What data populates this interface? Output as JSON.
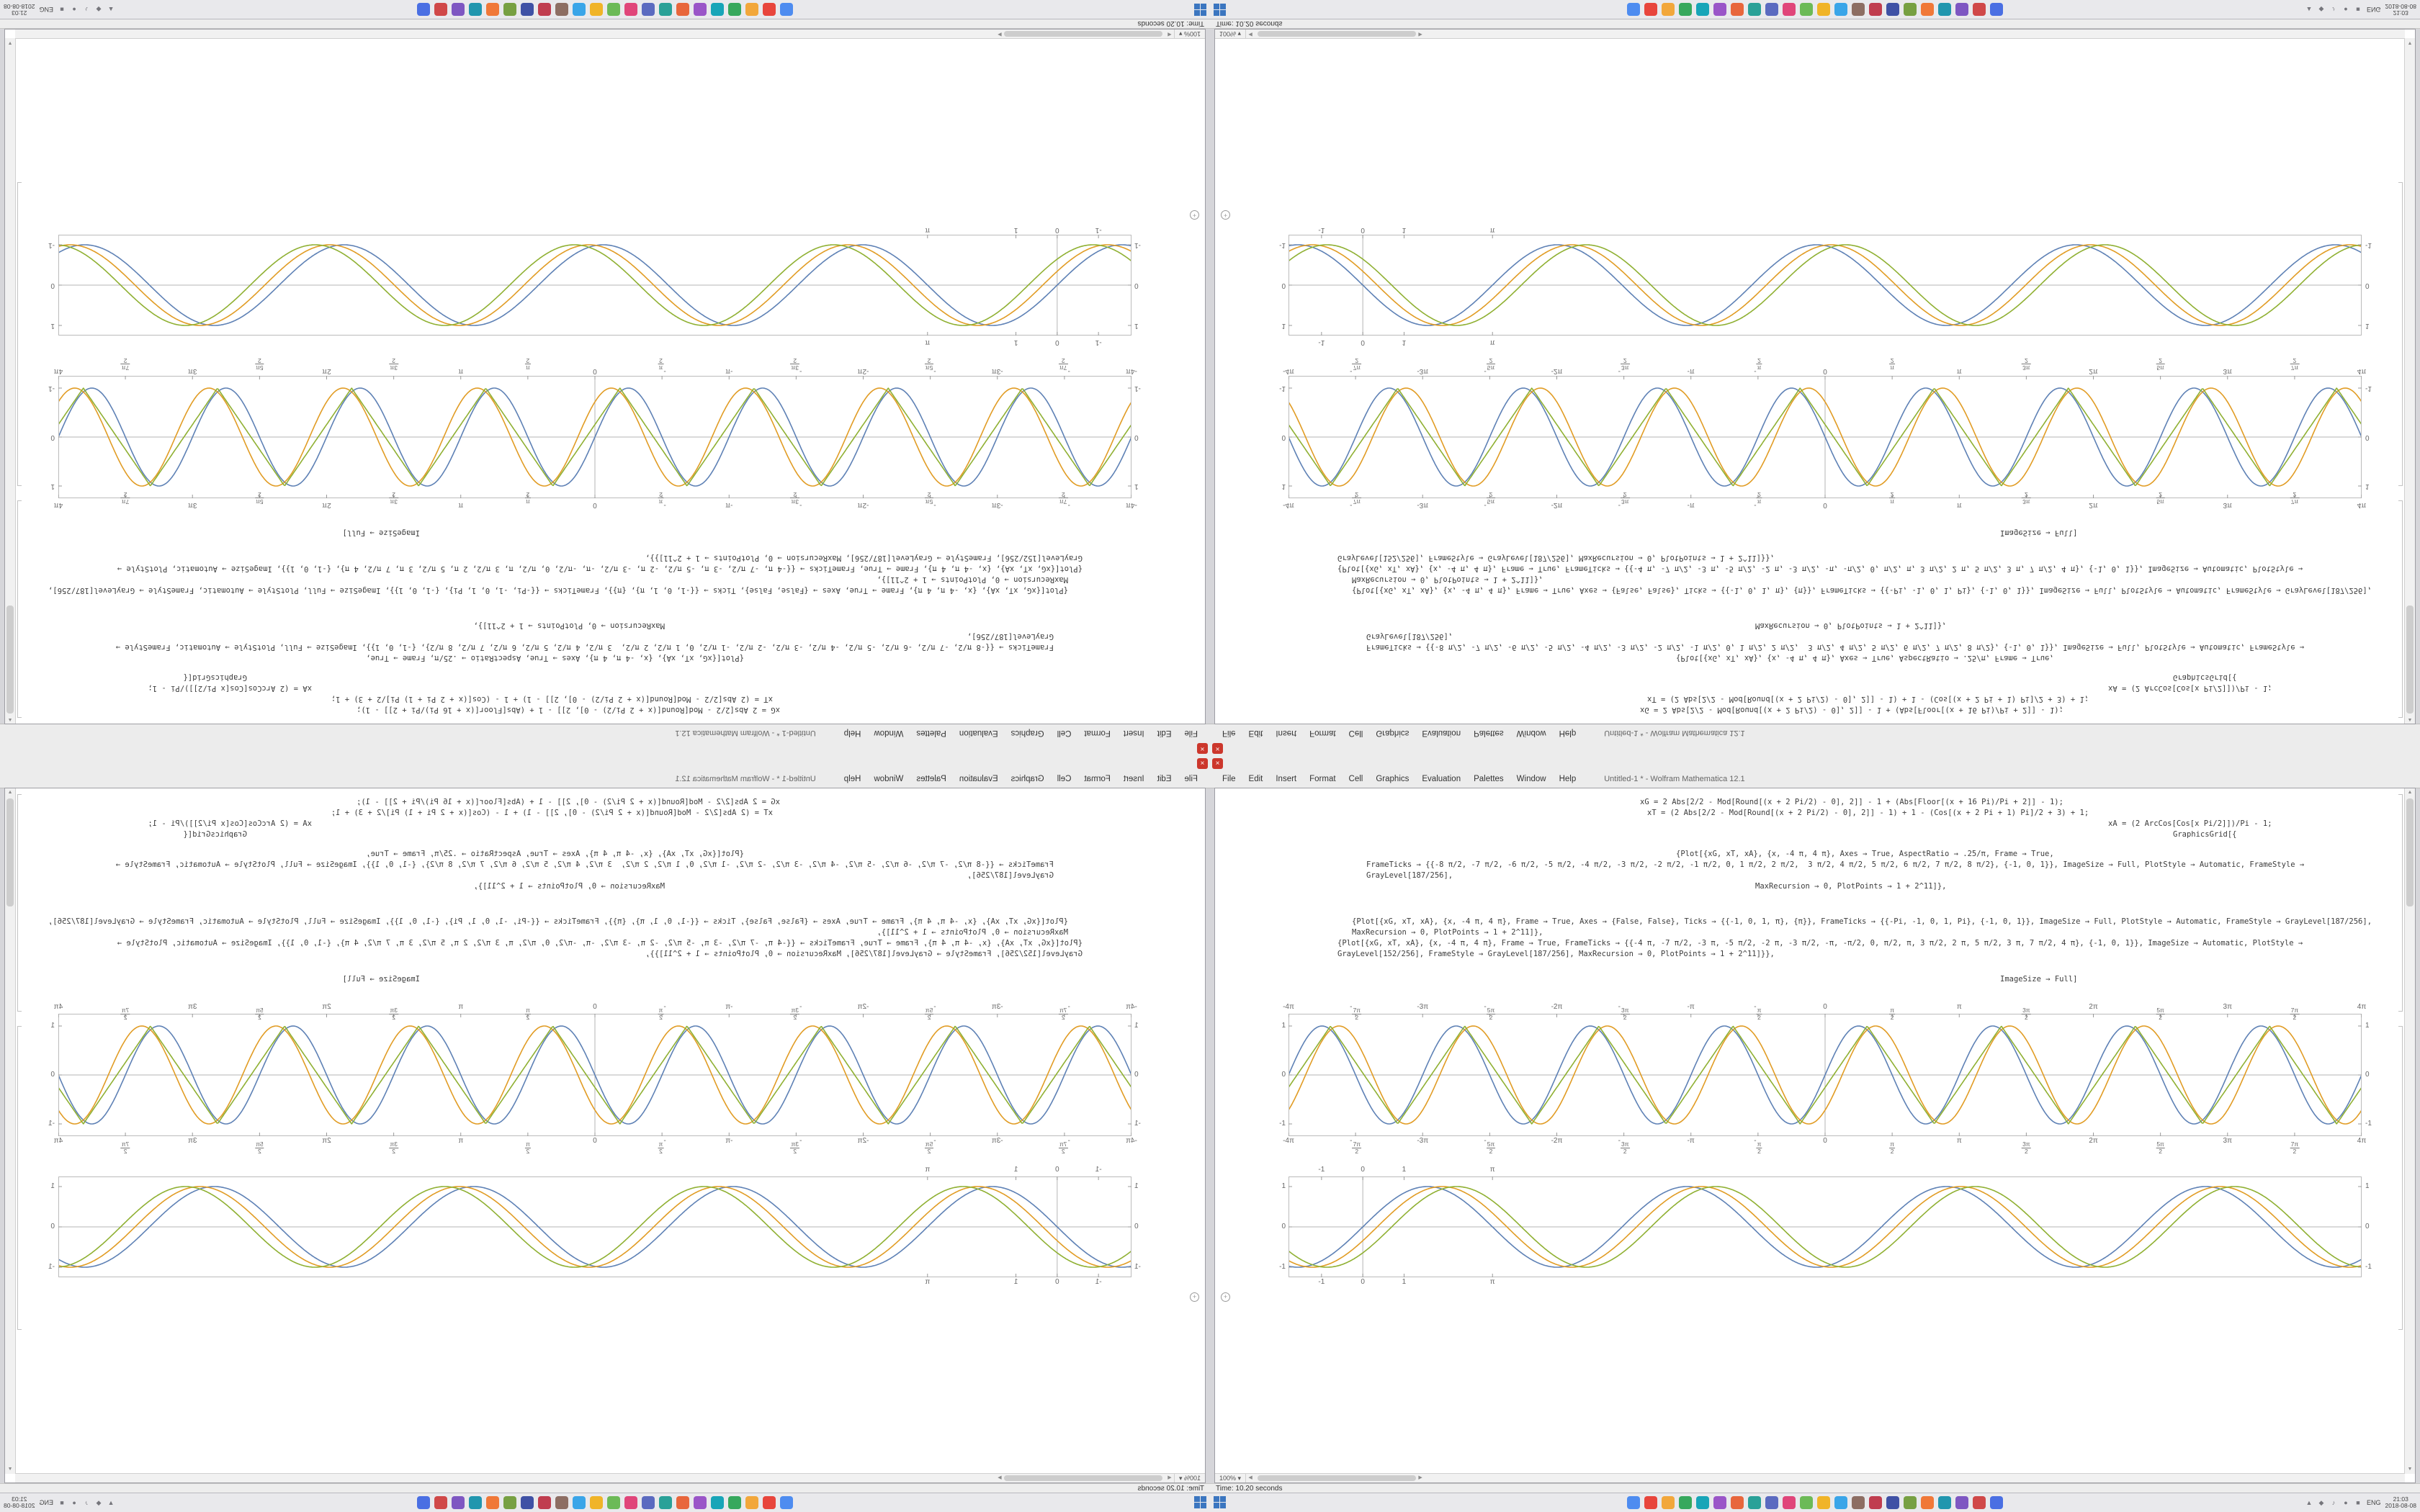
{
  "topbar": {
    "close_glyph": "×",
    "title": "Untitled-1 * - Wolfram Mathematica 12.1",
    "menus": [
      "File",
      "Edit",
      "Insert",
      "Format",
      "Cell",
      "Graphics",
      "Evaluation",
      "Palettes",
      "Window",
      "Help"
    ]
  },
  "notebook": {
    "zoom_value": "100%",
    "zoom_caret": "▾",
    "insert_plus_glyph": "+",
    "code_lines": [
      {
        "text": "xG = 2 Abs[2/2 - Mod[Round[(x + 2 Pi/2) - 0], 2]] - 1 + (Abs[Floor[(x + 16 Pi)/Pi + 2]] - 1);",
        "indent": 500,
        "gap": 6
      },
      {
        "text": "xT = (2 Abs[2/2 - Mod[Round[(x + 2 Pi/2) - 0], 2]] - 1) + 1 - (Cos[(x + 2 Pi + 1) Pi]/2 + 3) + 1;",
        "indent": 510,
        "gap": 0
      },
      {
        "text": "xA = (2 ArcCos[Cos[x Pi/2]])/Pi - 1;",
        "indent": 1150,
        "gap": 0
      },
      {
        "text": "GraphicsGrid[{",
        "indent": 1240,
        "gap": 0
      },
      {
        "text": "{Plot[{xG, xT, xA}, {x, -4 π, 4 π}, Axes → True, AspectRatio → .25/π, Frame → True,",
        "indent": 550,
        "gap": 12
      },
      {
        "text": "FrameTicks → {{-8 π/2, -7 π/2, -6 π/2, -5 π/2, -4 π/2, -3 π/2, -2 π/2, -1 π/2, 0, 1 π/2, 2 π/2,  3 π/2, 4 π/2, 5 π/2, 6 π/2, 7 π/2, 8 π/2}, {-1, 0, 1}}, ImageSize → Full, PlotStyle → Automatic, FrameStyle → GrayLevel[187/256],",
        "indent": 120,
        "gap": 0
      },
      {
        "text": "MaxRecursion → 0, PlotPoints → 1 + 2^11]},",
        "indent": 660,
        "gap": 0
      },
      {
        "text": "{Plot[{xG, xT, xA}, {x, -4 π, 4 π}, Frame → True, Axes → {False, False}, Ticks → {{-1, 0, 1, π}, {π}}, FrameTicks → {{-Pi, -1, 0, 1, Pi}, {-1, 0, 1}}, ImageSize → Full, PlotStyle → Automatic, FrameStyle → GrayLevel[187/256], MaxRecursion → 0, PlotPoints → 1 + 2^11]},",
        "indent": 100,
        "gap": 34
      },
      {
        "text": "{Plot[{xG, xT, xA}, {x, -4 π, 4 π}, Frame → True, FrameTicks → {{-4 π, -7 π/2, -3 π, -5 π/2, -2 π, -3 π/2, -π, -π/2, 0, π/2, π, 3 π/2, 2 π, 5 π/2, 3 π, 7 π/2, 4 π}, {-1, 0, 1}}, ImageSize → Automatic, PlotStyle → GrayLevel[152/256], FrameStyle → GrayLevel[187/256], MaxRecursion → 0, PlotPoints → 1 + 2^11]}},",
        "indent": 80,
        "gap": 0
      },
      {
        "text": "ImageSize → Full]",
        "indent": 1000,
        "gap": 20
      }
    ]
  },
  "status": {
    "text": "Time: 10.20 seconds"
  },
  "scroll": {
    "up": "▲",
    "down": "▼",
    "left": "◀",
    "right": "▶"
  },
  "taskbar": {
    "lang": "ENG",
    "clock_time": "21:03",
    "clock_date": "2018-08-08",
    "apps": [
      {
        "color": "#4e8cf0"
      },
      {
        "color": "#e8453c"
      },
      {
        "color": "#f2a73b"
      },
      {
        "color": "#37a85d"
      },
      {
        "color": "#18a5b8"
      },
      {
        "color": "#9a55c8"
      },
      {
        "color": "#e8663c"
      },
      {
        "color": "#2aa198"
      },
      {
        "color": "#5b6ac0"
      },
      {
        "color": "#e0457a"
      },
      {
        "color": "#6cba57"
      },
      {
        "color": "#f0b428"
      },
      {
        "color": "#3aa5e8"
      },
      {
        "color": "#8d6e63"
      },
      {
        "color": "#c03d4f"
      },
      {
        "color": "#3f51a5"
      },
      {
        "color": "#77a042"
      },
      {
        "color": "#f07838"
      },
      {
        "color": "#2196ae"
      },
      {
        "color": "#7e57c2"
      },
      {
        "color": "#d04848"
      },
      {
        "color": "#4a6fe3"
      }
    ],
    "tray_icons": [
      {
        "name": "chevron-up-icon",
        "glyph": "▲"
      },
      {
        "name": "network-icon",
        "glyph": "◆"
      },
      {
        "name": "volume-icon",
        "glyph": "♪"
      },
      {
        "name": "notification-icon",
        "glyph": "●"
      },
      {
        "name": "battery-icon",
        "glyph": "■"
      }
    ]
  },
  "chart_data": [
    {
      "type": "line",
      "title": "",
      "height": 170,
      "x_range": [
        -12.566,
        12.566
      ],
      "y_range": [
        -1.25,
        1.25
      ],
      "frame": true,
      "x_ticks": [
        {
          "label": "-4π",
          "value": -12.566
        },
        {
          "label": "-7π/2",
          "value": -10.996
        },
        {
          "label": "-3π",
          "value": -9.425
        },
        {
          "label": "-5π/2",
          "value": -7.854
        },
        {
          "label": "-2π",
          "value": -6.283
        },
        {
          "label": "-3π/2",
          "value": -4.712
        },
        {
          "label": "-π",
          "value": -3.142
        },
        {
          "label": "-π/2",
          "value": -1.571
        },
        {
          "label": "0",
          "value": 0
        },
        {
          "label": "π/2",
          "value": 1.571
        },
        {
          "label": "π",
          "value": 3.142
        },
        {
          "label": "3π/2",
          "value": 4.712
        },
        {
          "label": "2π",
          "value": 6.283
        },
        {
          "label": "5π/2",
          "value": 7.854
        },
        {
          "label": "3π",
          "value": 9.425
        },
        {
          "label": "7π/2",
          "value": 10.996
        },
        {
          "label": "4π",
          "value": 12.566
        }
      ],
      "y_ticks": [
        {
          "label": "1",
          "value": 1
        },
        {
          "label": "0",
          "value": 0
        },
        {
          "label": "-1",
          "value": -1
        }
      ],
      "series": [
        {
          "name": "sine",
          "kind": "sin",
          "freq": 2,
          "phase": 0,
          "color": "#5e81b5"
        },
        {
          "name": "sine-shifted",
          "kind": "sin",
          "freq": 2,
          "phase": 0.4,
          "color": "#e19c24"
        },
        {
          "name": "triangle-wave",
          "kind": "tri",
          "freq": 2,
          "phase": 0.2,
          "color": "#8fb032"
        }
      ]
    },
    {
      "type": "line",
      "title": "",
      "height": 140,
      "x_range": [
        -1.8,
        24.2
      ],
      "y_range": [
        -1.25,
        1.25
      ],
      "frame": true,
      "x_ticks": [
        {
          "label": "-1",
          "value": -1
        },
        {
          "label": "0",
          "value": 0
        },
        {
          "label": "1",
          "value": 1
        },
        {
          "label": "π",
          "value": 3.142
        }
      ],
      "y_ticks": [
        {
          "label": "1",
          "value": 1
        },
        {
          "label": "0",
          "value": 0
        },
        {
          "label": "-1",
          "value": -1
        }
      ],
      "series": [
        {
          "name": "sine",
          "kind": "sin",
          "freq": 1,
          "phase": 0,
          "color": "#5e81b5"
        },
        {
          "name": "sine-shifted",
          "kind": "sin",
          "freq": 1,
          "phase": 0.35,
          "color": "#e19c24"
        },
        {
          "name": "sine-shifted-2",
          "kind": "sin",
          "freq": 1,
          "phase": 0.7,
          "color": "#8fb032"
        }
      ]
    }
  ]
}
